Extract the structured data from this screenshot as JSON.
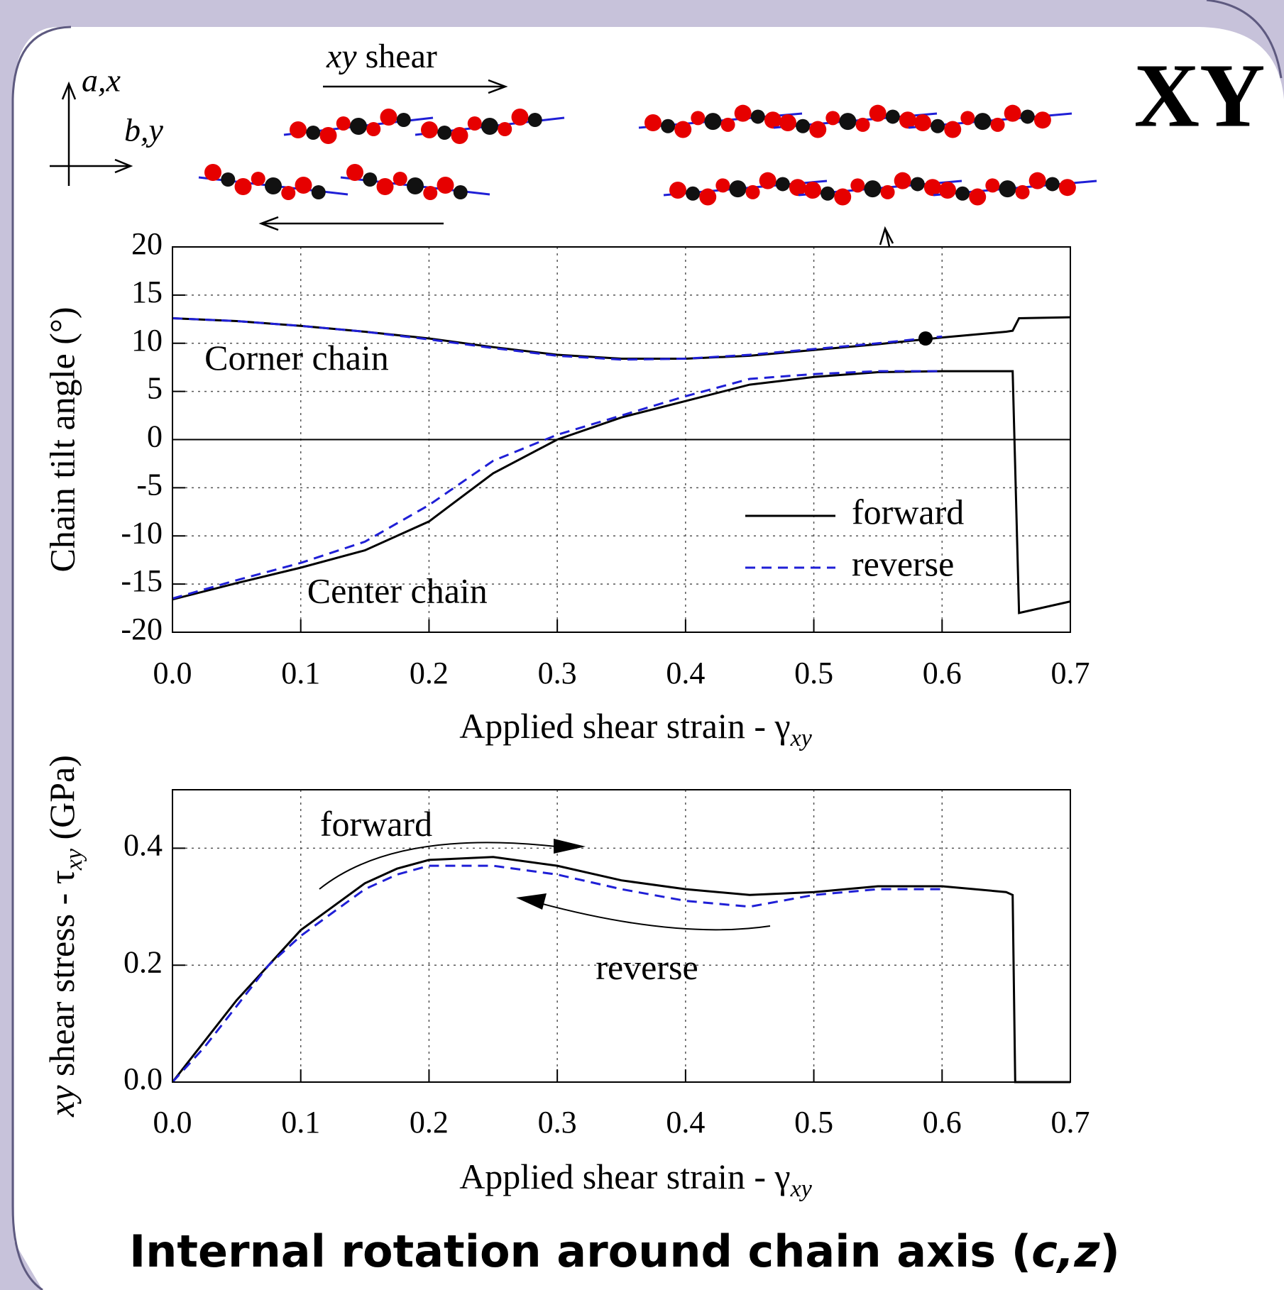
{
  "header": {
    "label": "XY",
    "shear_prefix": "xy",
    "shear_label": " shear",
    "axis_a": "a,x",
    "axis_b": "b,y"
  },
  "footer": {
    "title_start": "Internal rotation around chain axis (",
    "title_italic": "c,z",
    "title_end": ")"
  },
  "chart_data": [
    {
      "type": "line",
      "ylabel": "Chain tilt angle (°)",
      "xlabel": "Applied shear strain - γ",
      "xlabel_sub": "xy",
      "x": [
        0,
        0.05,
        0.1,
        0.15,
        0.2,
        0.25,
        0.3,
        0.35,
        0.4,
        0.45,
        0.5,
        0.55,
        0.6,
        0.65,
        0.655,
        0.66,
        0.7
      ],
      "series": [
        {
          "name": "forward",
          "color": "#000000",
          "dash": false,
          "values": [
            12.6,
            12.3,
            11.8,
            11.2,
            10.5,
            9.6,
            8.8,
            8.4,
            8.4,
            8.7,
            9.3,
            9.9,
            10.6,
            11.2,
            11.3,
            12.6,
            12.7
          ]
        },
        {
          "name": "reverse",
          "color": "#1f1fd6",
          "dash": true,
          "values": [
            12.6,
            12.3,
            11.8,
            11.2,
            10.4,
            9.5,
            8.7,
            8.3,
            8.4,
            8.8,
            9.4,
            10.0,
            10.7,
            null,
            null,
            null,
            null
          ]
        },
        {
          "name": "forward",
          "color": "#000000",
          "dash": false,
          "values": [
            -16.6,
            -14.9,
            -13.3,
            -11.5,
            -8.5,
            -3.5,
            0.0,
            2.3,
            4.0,
            5.7,
            6.5,
            7.0,
            7.1,
            7.1,
            7.1,
            -18,
            -16.8
          ]
        },
        {
          "name": "reverse",
          "color": "#1f1fd6",
          "dash": true,
          "values": [
            -16.5,
            -14.6,
            -12.8,
            -10.6,
            -6.8,
            -2.2,
            0.5,
            2.5,
            4.5,
            6.3,
            6.8,
            7.1,
            7.1,
            null,
            null,
            null,
            null
          ]
        }
      ],
      "annotations": [
        {
          "text": "Corner chain",
          "x": 0.025,
          "y": 8.1
        },
        {
          "text": "Center chain",
          "x": 0.105,
          "y": -16.1
        }
      ],
      "xlim": [
        0,
        0.7
      ],
      "ylim": [
        -20,
        20
      ],
      "xticks": [
        {
          "value": 0,
          "label": "0.0"
        },
        0.1,
        0.2,
        0.3,
        0.4,
        0.5,
        0.6,
        0.7
      ],
      "yticks": [
        -20,
        -15,
        -10,
        -5,
        0,
        5,
        10,
        15,
        20
      ],
      "grid": true,
      "legend": "lower right"
    },
    {
      "type": "line",
      "ylabel_parts": [
        "xy",
        " shear stress - τ",
        "xy",
        " (GPa)"
      ],
      "xlabel": "Applied shear strain - γ",
      "xlabel_sub": "xy",
      "x": [
        0,
        0.025,
        0.05,
        0.075,
        0.1,
        0.125,
        0.15,
        0.175,
        0.2,
        0.25,
        0.3,
        0.35,
        0.4,
        0.45,
        0.5,
        0.55,
        0.6,
        0.65,
        0.655,
        0.657,
        0.7
      ],
      "series": [
        {
          "name": "forward",
          "color": "#000000",
          "dash": false,
          "values": [
            0,
            0.07,
            0.14,
            0.2,
            0.26,
            0.3,
            0.34,
            0.365,
            0.38,
            0.385,
            0.37,
            0.345,
            0.33,
            0.32,
            0.325,
            0.335,
            0.335,
            0.325,
            0.32,
            0,
            0
          ]
        },
        {
          "name": "reverse",
          "color": "#1f1fd6",
          "dash": true,
          "values": [
            0,
            0.06,
            0.13,
            0.2,
            0.25,
            0.29,
            0.33,
            0.355,
            0.37,
            0.37,
            0.355,
            0.33,
            0.31,
            0.3,
            0.32,
            0.33,
            0.33,
            null,
            null,
            null,
            null
          ]
        }
      ],
      "annotations": [
        {
          "text": "forward",
          "x": 0.115,
          "y": 0.435
        },
        {
          "text": "reverse",
          "x": 0.33,
          "y": 0.19
        }
      ],
      "xlim": [
        0,
        0.7
      ],
      "ylim": [
        0,
        0.5
      ],
      "xticks": [
        {
          "value": 0,
          "label": "0.0"
        },
        0.1,
        0.2,
        0.3,
        0.4,
        0.5,
        0.6,
        0.7
      ],
      "yticks": [
        {
          "value": 0,
          "label": "0.0"
        },
        0.2,
        0.4
      ],
      "grid": true
    }
  ]
}
